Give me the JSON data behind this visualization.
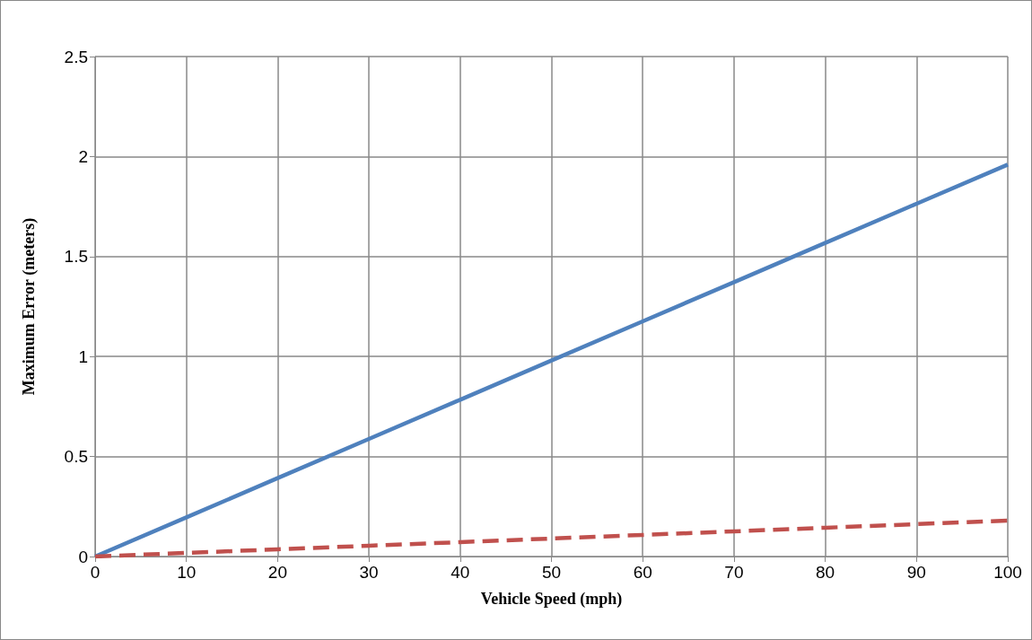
{
  "chart_data": {
    "type": "line",
    "xlabel": "Vehicle Speed (mph)",
    "ylabel": "Maximum Error (meters)",
    "x": [
      0,
      10,
      20,
      30,
      40,
      50,
      60,
      70,
      80,
      90,
      100
    ],
    "series": [
      {
        "color": "#4f81bd",
        "line_style": "solid",
        "values": [
          0,
          0.196,
          0.392,
          0.588,
          0.784,
          0.98,
          1.176,
          1.372,
          1.568,
          1.764,
          1.96
        ]
      },
      {
        "color": "#c0504d",
        "line_style": "dashed",
        "values": [
          0,
          0.018,
          0.036,
          0.054,
          0.072,
          0.09,
          0.108,
          0.126,
          0.144,
          0.162,
          0.18
        ]
      }
    ],
    "xlim": [
      0,
      100
    ],
    "xticks": [
      0,
      10,
      20,
      30,
      40,
      50,
      60,
      70,
      80,
      90,
      100
    ],
    "ylim": [
      0,
      2.5
    ],
    "yticks": [
      0,
      0.5,
      1,
      1.5,
      2,
      2.5
    ],
    "grid": true,
    "marker": "none"
  }
}
